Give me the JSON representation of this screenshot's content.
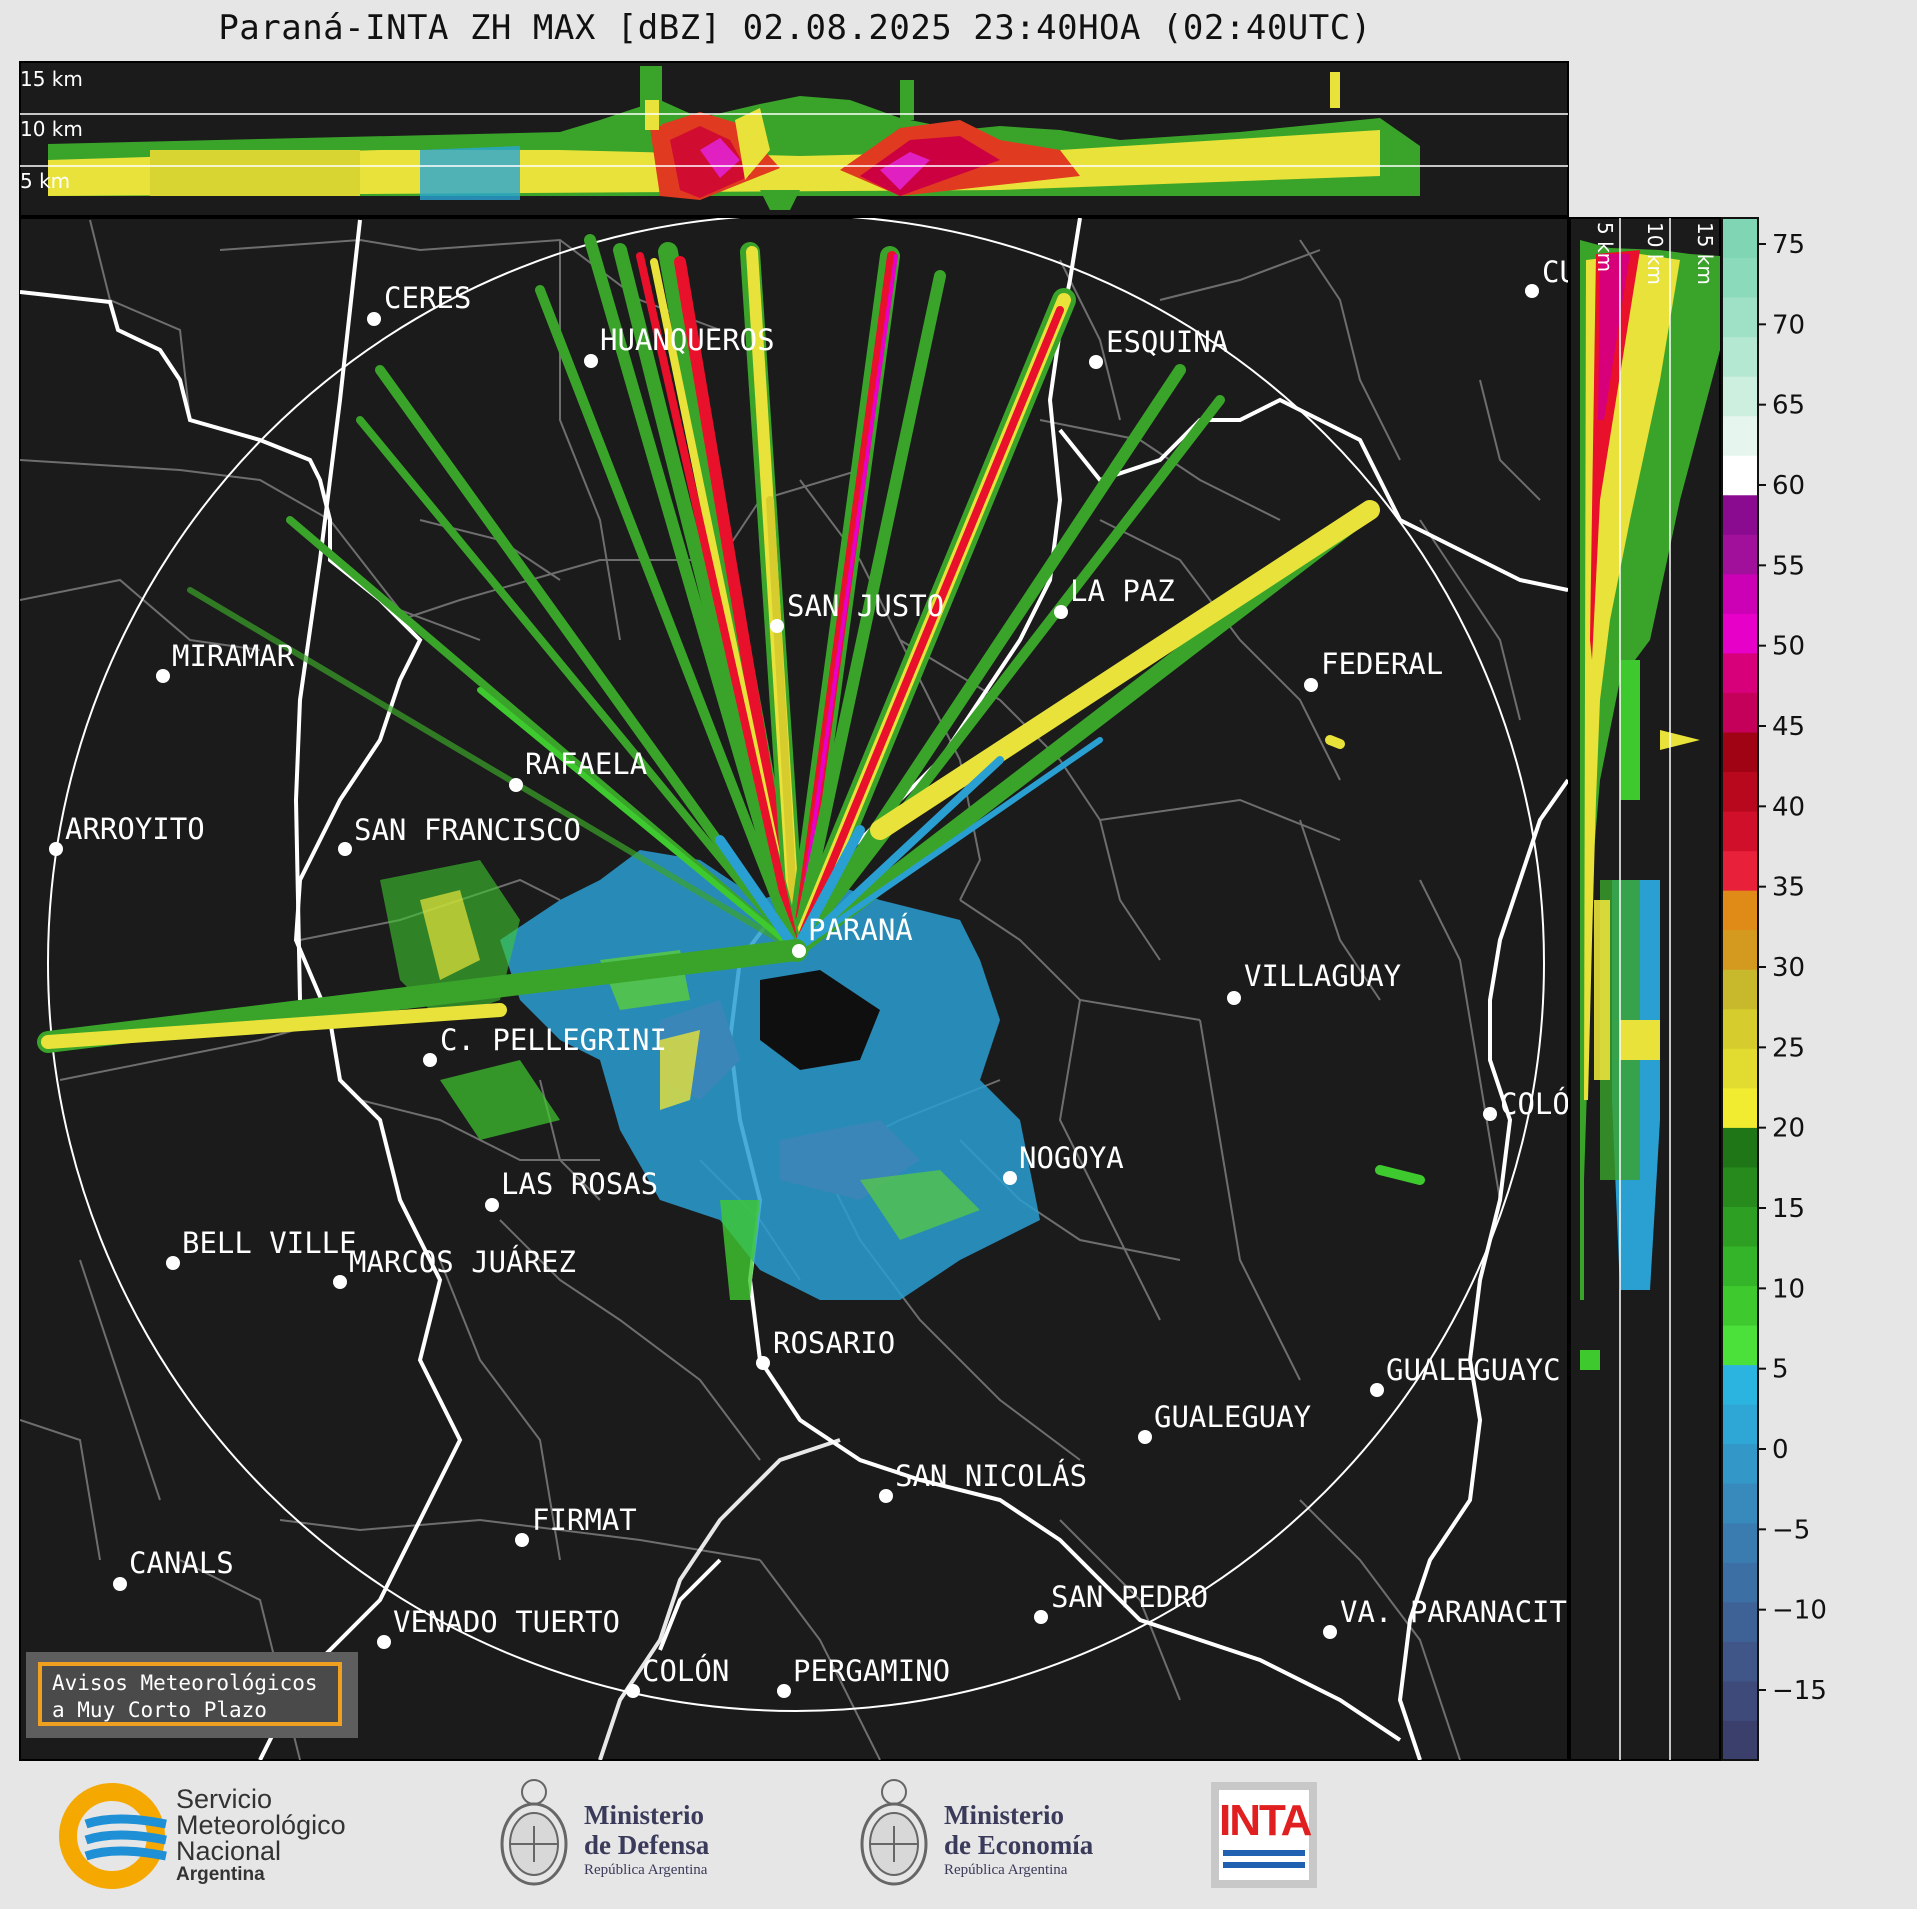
{
  "title": "Paraná-INTA ZH MAX [dBZ] 02.08.2025 23:40HOA (02:40UTC)",
  "top_panel": {
    "height_labels": [
      "15 km",
      "10 km",
      "5 km"
    ]
  },
  "side_panel": {
    "height_labels": [
      "5 km",
      "10 km",
      "15 km"
    ]
  },
  "colorbar": {
    "ticks": [
      "75",
      "70",
      "65",
      "60",
      "55",
      "50",
      "45",
      "40",
      "35",
      "30",
      "25",
      "20",
      "15",
      "10",
      "5",
      "0",
      "−5",
      "−10",
      "−15"
    ],
    "colors": [
      "#3b3f6b",
      "#3e4a7a",
      "#405689",
      "#3f6296",
      "#3c6fa3",
      "#3a7cb0",
      "#3889bc",
      "#3397c8",
      "#2ea6d6",
      "#2bb4e0",
      "#4ce03a",
      "#3ec92f",
      "#34b428",
      "#2d9f22",
      "#268a1c",
      "#1f7616",
      "#f2ec30",
      "#e3dc30",
      "#d6cc2e",
      "#c8b82c",
      "#d49a20",
      "#e08a18",
      "#e8203a",
      "#d0102a",
      "#b8081e",
      "#a00414",
      "#c4005a",
      "#d8007a",
      "#e600c8",
      "#cc00b4",
      "#a0109a",
      "#8a0a90",
      "#ffffff",
      "#e6f6ee",
      "#ccefdf",
      "#b4e8d2",
      "#9fe1c6",
      "#8cdabc",
      "#7fd5b4"
    ]
  },
  "cities": [
    {
      "name": "CERES"
    },
    {
      "name": "HUANQUEROS"
    },
    {
      "name": "ESQUINA"
    },
    {
      "name": "CU"
    },
    {
      "name": "SAN JUSTO"
    },
    {
      "name": "LA PAZ"
    },
    {
      "name": "MIRAMAR"
    },
    {
      "name": "FEDERAL"
    },
    {
      "name": "RAFAELA"
    },
    {
      "name": "ARROYITO"
    },
    {
      "name": "SAN FRANCISCO"
    },
    {
      "name": "PARANÁ"
    },
    {
      "name": "VILLAGUAY"
    },
    {
      "name": "C. PELLEGRINI"
    },
    {
      "name": "COLÓ"
    },
    {
      "name": "NOGOYA"
    },
    {
      "name": "LAS ROSAS"
    },
    {
      "name": "BELL VILLE"
    },
    {
      "name": "MARCOS JUÁREZ"
    },
    {
      "name": "ROSARIO"
    },
    {
      "name": "GUALEGUAYC"
    },
    {
      "name": "GUALEGUAY"
    },
    {
      "name": "SAN NICOLÁS"
    },
    {
      "name": "FIRMAT"
    },
    {
      "name": "CANALS"
    },
    {
      "name": "SAN PEDRO"
    },
    {
      "name": "VENADO TUERTO"
    },
    {
      "name": "VA. PARANACIT"
    },
    {
      "name": "COLÓN"
    },
    {
      "name": "PERGAMINO"
    }
  ],
  "notice": {
    "line1": "Avisos Meteorológicos",
    "line2": "a Muy Corto Plazo"
  },
  "logos": {
    "smn": {
      "line1": "Servicio",
      "line2": "Meteorológico",
      "line3": "Nacional",
      "line4": "Argentina"
    },
    "defensa": {
      "line1": "Ministerio",
      "line2": "de Defensa",
      "line3": "República Argentina"
    },
    "economia": {
      "line1": "Ministerio",
      "line2": "de Economía",
      "line3": "República Argentina"
    },
    "inta": {
      "text": "INTA"
    }
  }
}
